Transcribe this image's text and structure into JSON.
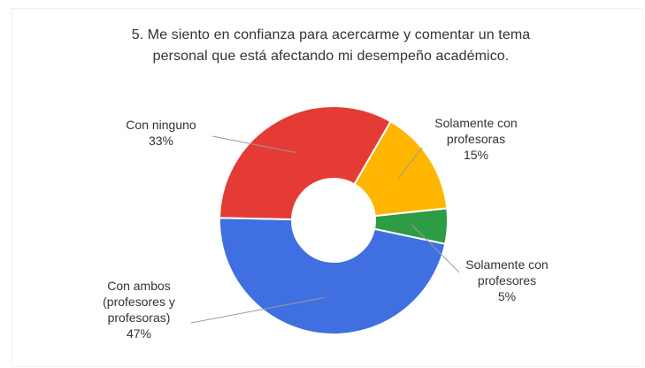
{
  "chart_data": {
    "type": "pie",
    "title_lines": [
      "5. Me siento en confianza para acercarme y comentar un tema",
      "personal que está afectando mi desempeño académico."
    ],
    "categories": [
      "Solamente con profesoras",
      "Solamente con profesores",
      "Con ambos (profesores y profesoras)",
      "Con ninguno"
    ],
    "values": [
      15,
      5,
      47,
      33
    ],
    "percent_labels": [
      "15%",
      "5%",
      "47%",
      "33%"
    ],
    "label_lines": [
      [
        "Solamente con",
        "profesoras",
        "15%"
      ],
      [
        "Solamente con",
        "profesores",
        "5%"
      ],
      [
        "Con ambos",
        "(profesores y",
        "profesoras)",
        "47%"
      ],
      [
        "Con ninguno",
        "33%"
      ]
    ],
    "colors": [
      "#ffb600",
      "#2e9b45",
      "#3f6fe0",
      "#e53b35"
    ],
    "donut": true,
    "legend": "none"
  }
}
